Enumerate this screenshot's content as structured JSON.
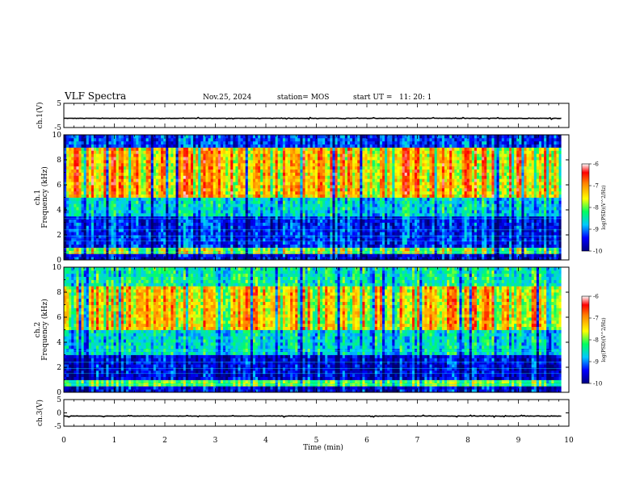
{
  "header": {
    "title": "VLF Spectra",
    "date": "Nov.25, 2024",
    "station": "station= MOS",
    "start_ut": "start UT =   11: 20: 1"
  },
  "colors": {
    "background": "#ffffff",
    "spectrum_low": "#000066",
    "spectrum_high": "#ff2020"
  },
  "chart_data": [
    {
      "type": "line",
      "name": "ch1-voltage",
      "ylabel": "ch.1(V)",
      "ylim": [
        -5,
        5
      ],
      "yticks": [
        "5",
        "-5"
      ],
      "x": [
        0,
        9.85
      ],
      "values": [
        -1.2,
        -1.2
      ]
    },
    {
      "type": "heatmap",
      "name": "ch1-spectrogram",
      "ylabel": "ch.1 Frequency (kHz)",
      "ylim": [
        0,
        10
      ],
      "yticks": [
        "0",
        "2",
        "4",
        "6",
        "8",
        "10"
      ],
      "xlim": [
        0,
        9.85
      ],
      "colorbar": {
        "label": "log(PSD)(V^2/Hz)",
        "range": [
          -10,
          -6
        ],
        "ticks": [
          "-6",
          "-7",
          "-8",
          "-9",
          "-10"
        ]
      },
      "bands": [
        {
          "freq_khz": [
            0,
            0.5
          ],
          "level": -9.5
        },
        {
          "freq_khz": [
            0.5,
            1.0
          ],
          "level": -7.8
        },
        {
          "freq_khz": [
            1.0,
            3.5
          ],
          "level": -9.3
        },
        {
          "freq_khz": [
            3.5,
            5.0
          ],
          "level": -8.6
        },
        {
          "freq_khz": [
            5.0,
            9.0
          ],
          "level": -7.2
        },
        {
          "freq_khz": [
            9.0,
            10.0
          ],
          "level": -9.2
        }
      ]
    },
    {
      "type": "heatmap",
      "name": "ch2-spectrogram",
      "ylabel": "ch.2 Frequency (kHz)",
      "ylim": [
        0,
        10
      ],
      "yticks": [
        "0",
        "2",
        "4",
        "6",
        "8",
        "10"
      ],
      "xlim": [
        0,
        9.85
      ],
      "colorbar": {
        "label": "log(PSD)(V^2/Hz)",
        "range": [
          -10,
          -6
        ],
        "ticks": [
          "-6",
          "-7",
          "-8",
          "-9",
          "-10"
        ]
      },
      "bands": [
        {
          "freq_khz": [
            0,
            0.5
          ],
          "level": -9.5
        },
        {
          "freq_khz": [
            0.5,
            1.0
          ],
          "level": -8.0
        },
        {
          "freq_khz": [
            1.0,
            3.0
          ],
          "level": -9.5
        },
        {
          "freq_khz": [
            3.0,
            5.0
          ],
          "level": -8.6
        },
        {
          "freq_khz": [
            5.0,
            8.5
          ],
          "level": -7.4
        },
        {
          "freq_khz": [
            8.5,
            10.0
          ],
          "level": -8.4
        }
      ]
    },
    {
      "type": "line",
      "name": "ch3-voltage",
      "ylabel": "ch.3(V)",
      "ylim": [
        -5,
        5
      ],
      "yticks": [
        "5",
        "0",
        "-5"
      ],
      "x": [
        0,
        9.85
      ],
      "values": [
        -1.2,
        -1.2
      ]
    }
  ],
  "xaxis": {
    "label": "Time (min)",
    "xlim": [
      0,
      10
    ],
    "ticks": [
      "0",
      "1",
      "2",
      "3",
      "4",
      "5",
      "6",
      "7",
      "8",
      "9",
      "10"
    ]
  }
}
